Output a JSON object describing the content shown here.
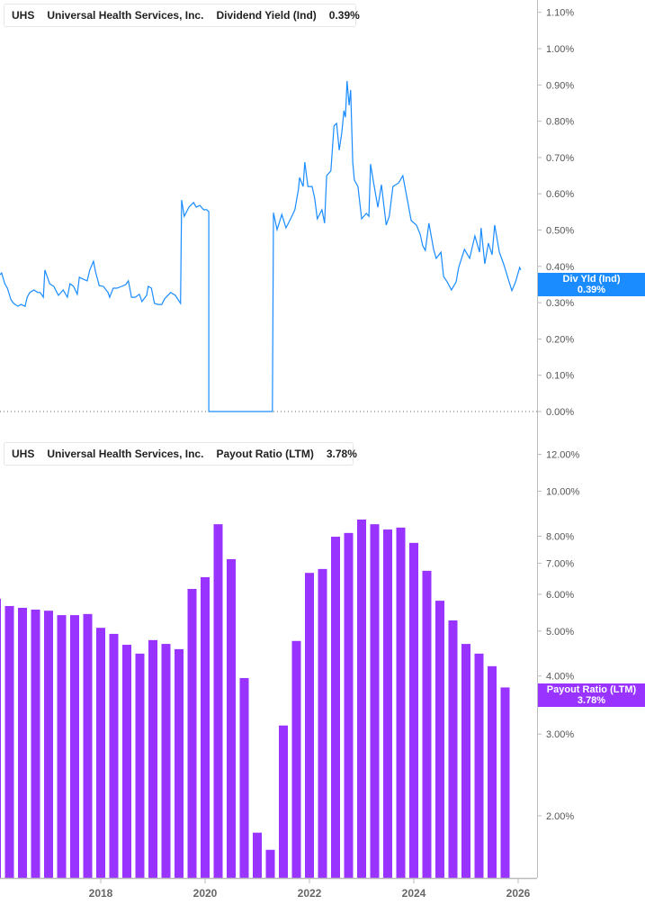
{
  "colors": {
    "dividend_yield": "#1a8cff",
    "payout_ratio": "#9933ff",
    "axis": "#bbbbbb"
  },
  "top_legend": {
    "ticker": "UHS",
    "company": "Universal Health Services, Inc.",
    "metric": "Dividend Yield (Ind)",
    "value": "0.39%"
  },
  "bottom_legend": {
    "ticker": "UHS",
    "company": "Universal Health Services, Inc.",
    "metric": "Payout Ratio (LTM)",
    "value": "3.78%"
  },
  "top_badge": {
    "label": "Div Yld (Ind)",
    "value": "0.39%"
  },
  "bottom_badge": {
    "label": "Payout Ratio (LTM)",
    "value": "3.78%"
  },
  "chart_data": [
    {
      "type": "line",
      "series": [
        {
          "name": "Dividend Yield (Ind)",
          "points": [
            [
              2016.07,
              0.377
            ],
            [
              2016.1,
              0.382
            ],
            [
              2016.16,
              0.352
            ],
            [
              2016.21,
              0.34
            ],
            [
              2016.28,
              0.308
            ],
            [
              2016.33,
              0.298
            ],
            [
              2016.41,
              0.29
            ],
            [
              2016.47,
              0.295
            ],
            [
              2016.55,
              0.29
            ],
            [
              2016.59,
              0.315
            ],
            [
              2016.64,
              0.328
            ],
            [
              2016.72,
              0.335
            ],
            [
              2016.79,
              0.328
            ],
            [
              2016.84,
              0.328
            ],
            [
              2016.9,
              0.315
            ],
            [
              2016.93,
              0.39
            ],
            [
              2017.02,
              0.352
            ],
            [
              2017.1,
              0.345
            ],
            [
              2017.16,
              0.328
            ],
            [
              2017.19,
              0.32
            ],
            [
              2017.28,
              0.335
            ],
            [
              2017.36,
              0.315
            ],
            [
              2017.41,
              0.352
            ],
            [
              2017.48,
              0.345
            ],
            [
              2017.55,
              0.323
            ],
            [
              2017.59,
              0.37
            ],
            [
              2017.66,
              0.365
            ],
            [
              2017.74,
              0.36
            ],
            [
              2017.79,
              0.39
            ],
            [
              2017.86,
              0.414
            ],
            [
              2017.9,
              0.385
            ],
            [
              2017.97,
              0.347
            ],
            [
              2018.05,
              0.345
            ],
            [
              2018.14,
              0.328
            ],
            [
              2018.17,
              0.315
            ],
            [
              2018.24,
              0.34
            ],
            [
              2018.31,
              0.34
            ],
            [
              2018.4,
              0.345
            ],
            [
              2018.48,
              0.35
            ],
            [
              2018.53,
              0.36
            ],
            [
              2018.59,
              0.315
            ],
            [
              2018.66,
              0.315
            ],
            [
              2018.74,
              0.323
            ],
            [
              2018.79,
              0.303
            ],
            [
              2018.88,
              0.32
            ],
            [
              2018.91,
              0.345
            ],
            [
              2018.97,
              0.34
            ],
            [
              2019.03,
              0.298
            ],
            [
              2019.1,
              0.295
            ],
            [
              2019.17,
              0.295
            ],
            [
              2019.22,
              0.31
            ],
            [
              2019.34,
              0.328
            ],
            [
              2019.43,
              0.32
            ],
            [
              2019.53,
              0.298
            ],
            [
              2019.55,
              0.583
            ],
            [
              2019.6,
              0.538
            ],
            [
              2019.69,
              0.563
            ],
            [
              2019.78,
              0.576
            ],
            [
              2019.83,
              0.563
            ],
            [
              2019.9,
              0.568
            ],
            [
              2019.97,
              0.556
            ],
            [
              2020.03,
              0.556
            ],
            [
              2020.07,
              0.551
            ],
            [
              2020.071,
              0.0
            ],
            [
              2021.29,
              0.0
            ],
            [
              2021.31,
              0.548
            ],
            [
              2021.38,
              0.501
            ],
            [
              2021.47,
              0.543
            ],
            [
              2021.55,
              0.506
            ],
            [
              2021.64,
              0.531
            ],
            [
              2021.72,
              0.556
            ],
            [
              2021.79,
              0.613
            ],
            [
              2021.81,
              0.645
            ],
            [
              2021.88,
              0.62
            ],
            [
              2021.91,
              0.687
            ],
            [
              2021.97,
              0.62
            ],
            [
              2022.05,
              0.62
            ],
            [
              2022.1,
              0.588
            ],
            [
              2022.15,
              0.531
            ],
            [
              2022.24,
              0.556
            ],
            [
              2022.29,
              0.519
            ],
            [
              2022.33,
              0.65
            ],
            [
              2022.41,
              0.663
            ],
            [
              2022.47,
              0.787
            ],
            [
              2022.52,
              0.794
            ],
            [
              2022.57,
              0.72
            ],
            [
              2022.62,
              0.769
            ],
            [
              2022.66,
              0.829
            ],
            [
              2022.69,
              0.811
            ],
            [
              2022.72,
              0.911
            ],
            [
              2022.76,
              0.844
            ],
            [
              2022.79,
              0.886
            ],
            [
              2022.83,
              0.687
            ],
            [
              2022.86,
              0.638
            ],
            [
              2022.93,
              0.62
            ],
            [
              2023.0,
              0.531
            ],
            [
              2023.09,
              0.546
            ],
            [
              2023.14,
              0.538
            ],
            [
              2023.17,
              0.682
            ],
            [
              2023.22,
              0.638
            ],
            [
              2023.31,
              0.563
            ],
            [
              2023.38,
              0.625
            ],
            [
              2023.47,
              0.514
            ],
            [
              2023.53,
              0.538
            ],
            [
              2023.6,
              0.62
            ],
            [
              2023.71,
              0.63
            ],
            [
              2023.79,
              0.65
            ],
            [
              2023.88,
              0.581
            ],
            [
              2023.95,
              0.526
            ],
            [
              2024.05,
              0.514
            ],
            [
              2024.12,
              0.489
            ],
            [
              2024.17,
              0.457
            ],
            [
              2024.22,
              0.444
            ],
            [
              2024.29,
              0.519
            ],
            [
              2024.38,
              0.447
            ],
            [
              2024.43,
              0.422
            ],
            [
              2024.52,
              0.439
            ],
            [
              2024.57,
              0.372
            ],
            [
              2024.64,
              0.357
            ],
            [
              2024.72,
              0.335
            ],
            [
              2024.81,
              0.357
            ],
            [
              2024.86,
              0.397
            ],
            [
              2024.97,
              0.447
            ],
            [
              2025.07,
              0.422
            ],
            [
              2025.17,
              0.484
            ],
            [
              2025.26,
              0.439
            ],
            [
              2025.29,
              0.506
            ],
            [
              2025.36,
              0.407
            ],
            [
              2025.43,
              0.464
            ],
            [
              2025.5,
              0.432
            ],
            [
              2025.55,
              0.514
            ],
            [
              2025.64,
              0.439
            ],
            [
              2025.72,
              0.407
            ],
            [
              2025.81,
              0.365
            ],
            [
              2025.88,
              0.333
            ],
            [
              2025.95,
              0.357
            ],
            [
              2026.03,
              0.397
            ],
            [
              2026.05,
              0.39
            ]
          ]
        }
      ],
      "y_unit": "%",
      "ylim": [
        0,
        1.1
      ],
      "yticks": [
        "1.10%",
        "1.00%",
        "0.90%",
        "0.80%",
        "0.70%",
        "0.60%",
        "0.50%",
        "0.40%",
        "0.30%",
        "0.20%",
        "0.10%",
        "0.00%"
      ],
      "ytick_values": [
        1.1,
        1.0,
        0.9,
        0.8,
        0.7,
        0.6,
        0.5,
        0.4,
        0.3,
        0.2,
        0.1,
        0.0
      ],
      "grid": false
    },
    {
      "type": "bar",
      "y_scale": "log",
      "series": [
        {
          "name": "Payout Ratio (LTM)",
          "x": [
            2016.0,
            2016.25,
            2016.5,
            2016.75,
            2017.0,
            2017.25,
            2017.5,
            2017.75,
            2018.0,
            2018.25,
            2018.5,
            2018.75,
            2019.0,
            2019.25,
            2019.5,
            2019.75,
            2020.0,
            2020.25,
            2020.5,
            2020.75,
            2021.0,
            2021.25,
            2021.5,
            2021.75,
            2022.0,
            2022.25,
            2022.5,
            2022.75,
            2023.0,
            2023.25,
            2023.5,
            2023.75,
            2024.0,
            2024.25,
            2024.5,
            2024.75,
            2025.0,
            2025.25,
            2025.5,
            2025.75
          ],
          "values": [
            5.87,
            5.66,
            5.61,
            5.56,
            5.53,
            5.41,
            5.41,
            5.44,
            5.08,
            4.93,
            4.67,
            4.47,
            4.78,
            4.69,
            4.57,
            6.16,
            6.53,
            8.49,
            7.14,
            3.96,
            1.84,
            1.69,
            3.13,
            4.76,
            6.67,
            6.8,
            7.98,
            8.13,
            8.69,
            8.49,
            8.27,
            8.35,
            7.74,
            6.74,
            5.81,
            5.27,
            4.69,
            4.47,
            4.2,
            3.78
          ]
        }
      ],
      "y_unit": "%",
      "yticks": [
        "12.00%",
        "10.00%",
        "8.00%",
        "7.00%",
        "6.00%",
        "5.00%",
        "4.00%",
        "3.00%",
        "2.00%"
      ],
      "ytick_values": [
        12,
        10,
        8,
        7,
        6,
        5,
        4,
        3,
        2
      ],
      "xticks": [
        "2018",
        "2020",
        "2022",
        "2024",
        "2026"
      ],
      "xtick_values": [
        2018,
        2020,
        2022,
        2024,
        2026
      ],
      "grid": false
    }
  ]
}
